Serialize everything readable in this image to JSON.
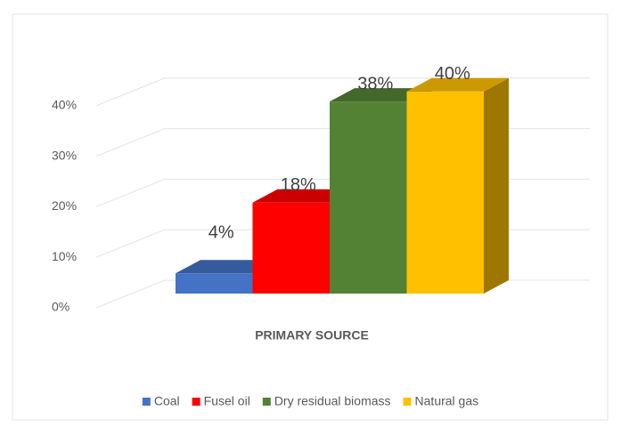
{
  "chart_data": {
    "type": "bar3d",
    "categories": [
      "PRIMARY SOURCE"
    ],
    "series": [
      {
        "name": "Coal",
        "color": "#4472c4",
        "values": [
          4
        ],
        "value_labels": [
          "4%"
        ]
      },
      {
        "name": "Fusel oil",
        "color": "#ff0000",
        "values": [
          18
        ],
        "value_labels": [
          "18%"
        ]
      },
      {
        "name": "Dry residual biomass",
        "color": "#548235",
        "values": [
          38
        ],
        "value_labels": [
          "38%"
        ]
      },
      {
        "name": "Natural gas",
        "color": "#ffc000",
        "values": [
          40
        ],
        "value_labels": [
          "40%"
        ]
      }
    ],
    "ylim": [
      0,
      50
    ],
    "yticks": [
      {
        "value": 0,
        "label": "0%"
      },
      {
        "value": 10,
        "label": "10%"
      },
      {
        "value": 20,
        "label": "20%"
      },
      {
        "value": 30,
        "label": "30%"
      },
      {
        "value": 40,
        "label": "40%"
      }
    ],
    "grid": true,
    "legend": "bottom"
  }
}
